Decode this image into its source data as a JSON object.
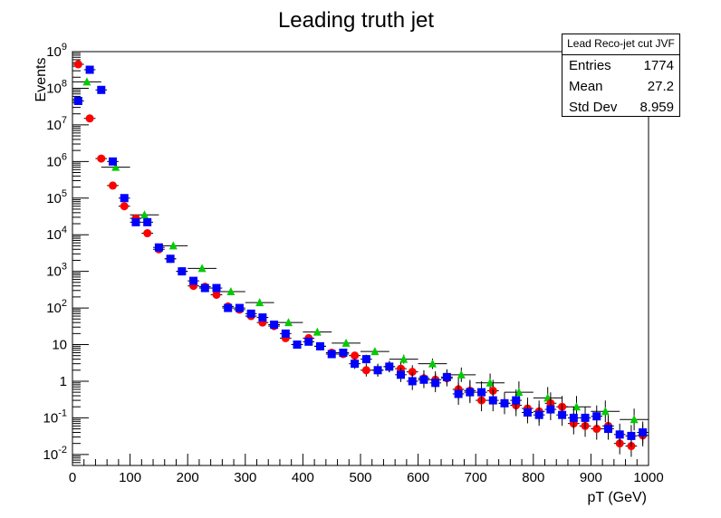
{
  "chart_data": {
    "type": "scatter",
    "title": "Leading truth jet",
    "xlabel": "pT (GeV)",
    "ylabel": "Events",
    "xlim": [
      0,
      1000
    ],
    "ylim": [
      0.005,
      1000000000
    ],
    "yscale": "log",
    "x_ticks": [
      "0",
      "100",
      "200",
      "300",
      "400",
      "500",
      "600",
      "700",
      "800",
      "900",
      "1000"
    ],
    "y_ticks": [
      {
        "base": "10",
        "exp": "-2",
        "value": 0.01
      },
      {
        "base": "10",
        "exp": "-1",
        "value": 0.1
      },
      {
        "base": "1",
        "exp": "",
        "value": 1
      },
      {
        "base": "10",
        "exp": "",
        "value": 10
      },
      {
        "base": "10",
        "exp": "2",
        "value": 100
      },
      {
        "base": "10",
        "exp": "3",
        "value": 1000
      },
      {
        "base": "10",
        "exp": "4",
        "value": 10000
      },
      {
        "base": "10",
        "exp": "5",
        "value": 100000
      },
      {
        "base": "10",
        "exp": "6",
        "value": 1000000
      },
      {
        "base": "10",
        "exp": "7",
        "value": 10000000
      },
      {
        "base": "10",
        "exp": "8",
        "value": 100000000
      },
      {
        "base": "10",
        "exp": "9",
        "value": 1000000000
      }
    ],
    "stats": {
      "title": "Lead Reco-jet cut JVF",
      "entries_label": "Entries",
      "entries": "1774",
      "mean_label": "Mean",
      "mean": "27.2",
      "stddev_label": "Std Dev",
      "stddev": "8.959"
    },
    "series": [
      {
        "marker": "circle",
        "color": "#ff0000",
        "x": [
          10,
          30,
          50,
          70,
          90,
          110,
          130,
          150,
          170,
          190,
          210,
          230,
          250,
          270,
          290,
          310,
          330,
          350,
          370,
          390,
          410,
          430,
          450,
          470,
          490,
          510,
          530,
          550,
          570,
          590,
          610,
          630,
          650,
          670,
          690,
          710,
          730,
          750,
          770,
          790,
          810,
          830,
          850,
          870,
          890,
          910,
          930,
          950,
          970,
          990
        ],
        "y": [
          450000000,
          15000000,
          1200000,
          220000,
          60000,
          28000,
          11000,
          4000,
          2200,
          1000,
          400,
          380,
          230,
          110,
          90,
          60,
          40,
          32,
          15,
          10,
          15,
          9,
          6,
          5.5,
          5,
          2,
          2,
          2.5,
          2.2,
          1.8,
          1.2,
          1.1,
          1.2,
          0.6,
          0.55,
          0.3,
          0.55,
          0.25,
          0.22,
          0.18,
          0.15,
          0.25,
          0.2,
          0.07,
          0.06,
          0.05,
          0.06,
          0.02,
          0.017,
          0.033
        ]
      },
      {
        "marker": "square",
        "color": "#0000ff",
        "x": [
          10,
          30,
          50,
          70,
          90,
          110,
          130,
          150,
          170,
          190,
          210,
          230,
          250,
          270,
          290,
          310,
          330,
          350,
          370,
          390,
          410,
          430,
          450,
          470,
          490,
          510,
          530,
          550,
          570,
          590,
          610,
          630,
          650,
          670,
          690,
          710,
          730,
          750,
          770,
          790,
          810,
          830,
          850,
          870,
          890,
          910,
          930,
          950,
          970,
          990
        ],
        "y": [
          45000000,
          320000000,
          90000000,
          1000000,
          100000,
          22000,
          22000,
          4500,
          2200,
          1000,
          550,
          350,
          350,
          100,
          100,
          70,
          55,
          35,
          20,
          10,
          12,
          9,
          5.5,
          6,
          3,
          4,
          2,
          2.5,
          1.5,
          1,
          1.1,
          0.9,
          1.3,
          0.45,
          0.5,
          0.5,
          0.3,
          0.25,
          0.3,
          0.14,
          0.12,
          0.17,
          0.12,
          0.1,
          0.1,
          0.11,
          0.05,
          0.035,
          0.032,
          0.04
        ]
      },
      {
        "marker": "triangle",
        "color": "#00cc00",
        "x": [
          25,
          75,
          125,
          175,
          225,
          275,
          325,
          375,
          425,
          475,
          525,
          575,
          625,
          675,
          725,
          775,
          825,
          875,
          925,
          975
        ],
        "y": [
          150000000,
          700000,
          35000,
          5000,
          1200,
          280,
          140,
          40,
          22,
          11,
          6.5,
          4,
          3,
          1.5,
          0.9,
          0.5,
          0.35,
          0.2,
          0.15,
          0.09
        ]
      }
    ]
  }
}
